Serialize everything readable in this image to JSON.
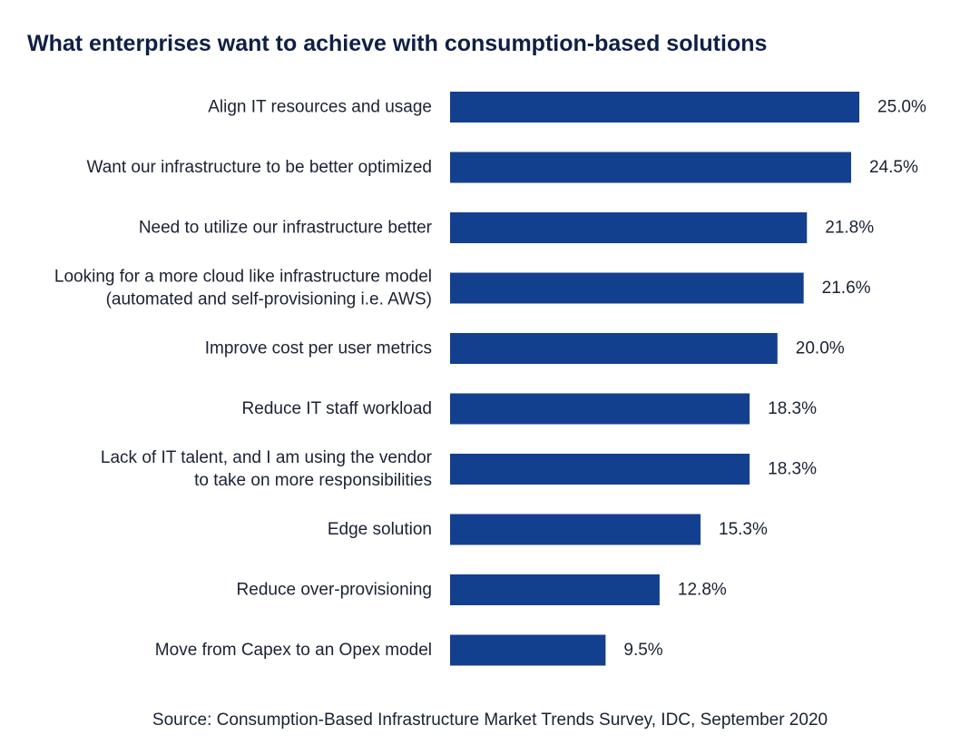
{
  "colors": {
    "bar": "#133f8f",
    "title": "#0f1f45",
    "text": "#1a2233"
  },
  "chart_data": {
    "type": "bar",
    "orientation": "horizontal",
    "title": "What enterprises want to achieve with consumption-based solutions",
    "source": "Source: Consumption-Based Infrastructure Market Trends Survey, IDC, September 2020",
    "categories": [
      [
        "Align IT resources and usage"
      ],
      [
        "Want our infrastructure to be better optimized"
      ],
      [
        "Need to utilize our infrastructure better"
      ],
      [
        "Looking for a more cloud like infrastructure model",
        "(automated and self-provisioning i.e. AWS)"
      ],
      [
        "Improve cost per user metrics"
      ],
      [
        "Reduce IT staff workload"
      ],
      [
        "Lack of IT talent, and I am using the vendor",
        "to take on more responsibilities"
      ],
      [
        "Edge solution"
      ],
      [
        "Reduce over-provisioning"
      ],
      [
        "Move from Capex to an Opex model"
      ]
    ],
    "values": [
      25.0,
      24.5,
      21.8,
      21.6,
      20.0,
      18.3,
      18.3,
      15.3,
      12.8,
      9.5
    ],
    "value_labels": [
      "25.0%",
      "24.5%",
      "21.8%",
      "21.6%",
      "20.0%",
      "18.3%",
      "18.3%",
      "15.3%",
      "12.8%",
      "9.5%"
    ],
    "xlim": [
      0,
      25.0
    ],
    "grid": false,
    "legend": "none"
  }
}
